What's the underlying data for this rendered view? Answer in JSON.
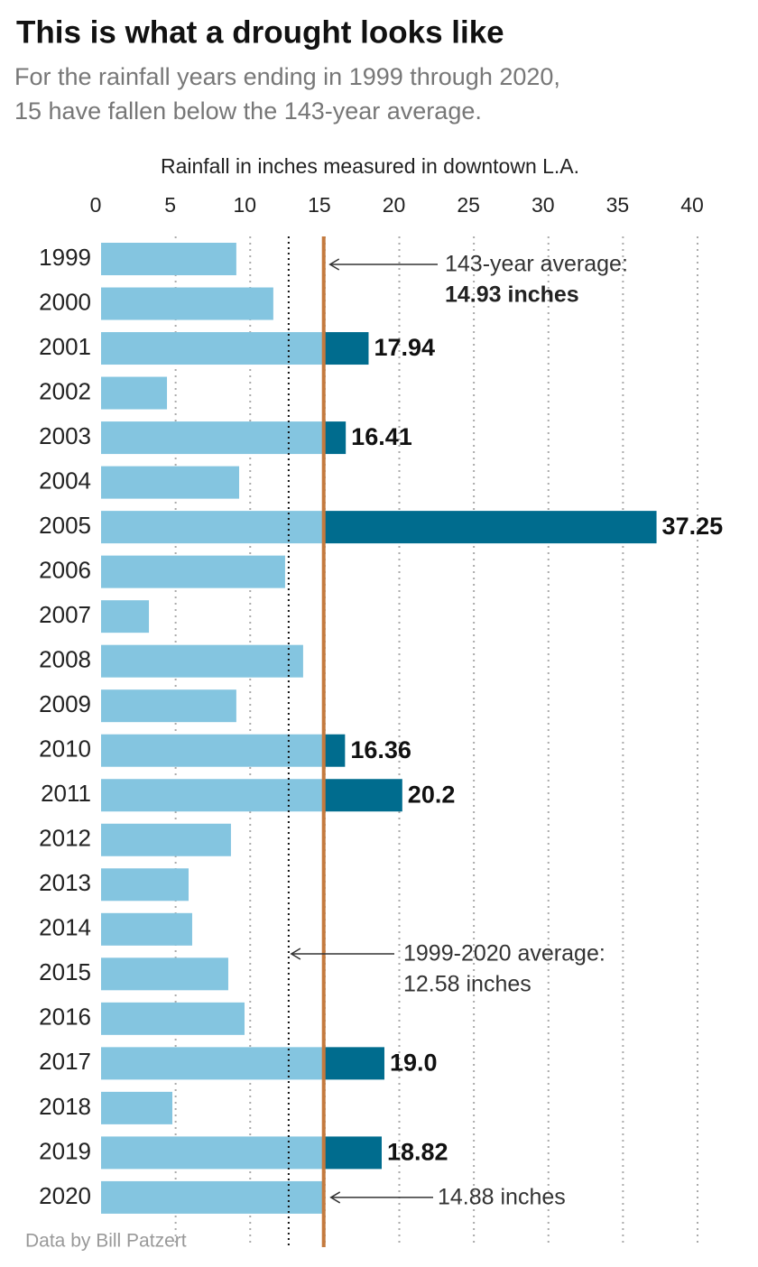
{
  "chart_data": {
    "type": "bar",
    "orientation": "horizontal",
    "title": "This is what a drought looks like",
    "subtitle": [
      "For the rainfall years ending in 1999 through 2020,",
      "15 have fallen below the 143-year average."
    ],
    "x_label": "Rainfall in inches measured in downtown L.A.",
    "source": "Data by Bill Patzert",
    "categories": [
      "1999",
      "2000",
      "2001",
      "2002",
      "2003",
      "2004",
      "2005",
      "2006",
      "2007",
      "2008",
      "2009",
      "2010",
      "2011",
      "2012",
      "2013",
      "2014",
      "2015",
      "2016",
      "2017",
      "2018",
      "2019",
      "2020"
    ],
    "values": [
      9.07,
      11.55,
      17.94,
      4.42,
      16.41,
      9.26,
      37.25,
      12.34,
      3.21,
      13.55,
      9.07,
      16.36,
      20.2,
      8.71,
      5.87,
      6.11,
      8.53,
      9.62,
      19.0,
      4.78,
      18.82,
      14.88
    ],
    "value_labels": [
      null,
      null,
      "17.94",
      null,
      "16.41",
      null,
      "37.25",
      null,
      null,
      null,
      null,
      "16.36",
      "20.2",
      null,
      null,
      null,
      null,
      null,
      "19.0",
      null,
      "18.82",
      "14.88 inches"
    ],
    "color": "#84c5e0",
    "above_average_color": "#006c8e",
    "long_average": {
      "label": "143-year average:",
      "value": 14.93,
      "value_label": "14.93 inches",
      "color": "#c47a3e"
    },
    "period_average": {
      "label": "1999-2020 average:",
      "value": 12.58,
      "value_label": "12.58 inches"
    },
    "xlim": [
      0,
      40
    ],
    "xticks": [
      0,
      5,
      10,
      15,
      20,
      25,
      30,
      35,
      40
    ],
    "grid": true
  }
}
